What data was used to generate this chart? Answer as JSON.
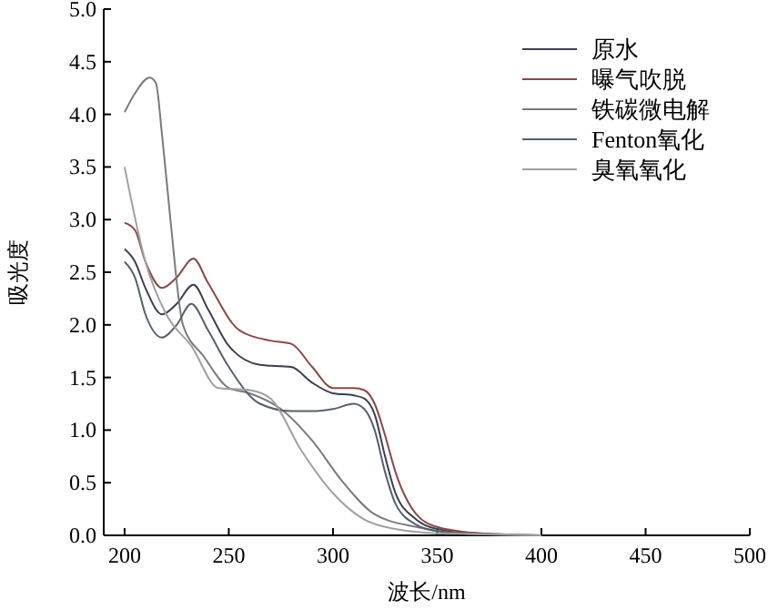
{
  "chart_data": {
    "type": "line",
    "xlabel": "波长/nm",
    "ylabel": "吸光度",
    "xlim": [
      190,
      500
    ],
    "ylim": [
      0,
      5
    ],
    "xticks": [
      200,
      250,
      300,
      350,
      400,
      450,
      500
    ],
    "yticks": [
      {
        "value": 0,
        "label": "0.0"
      },
      {
        "value": 0.5,
        "label": "0.5"
      },
      {
        "value": 1,
        "label": "1.0"
      },
      {
        "value": 1.5,
        "label": "1.5"
      },
      {
        "value": 2,
        "label": "2.0"
      },
      {
        "value": 2.5,
        "label": "2.5"
      },
      {
        "value": 3,
        "label": "3.0"
      },
      {
        "value": 3.5,
        "label": "3.5"
      },
      {
        "value": 4,
        "label": "4.0"
      },
      {
        "value": 4.5,
        "label": "4.5"
      },
      {
        "value": 5,
        "label": "5.0"
      }
    ],
    "grid": false,
    "legend": "top right",
    "marker": "none",
    "line_style": "solid",
    "series": [
      {
        "name": "原水",
        "color": "#3c3f4e",
        "x": [
          200,
          205,
          210,
          218,
          225,
          233,
          240,
          250,
          265,
          280,
          290,
          300,
          310,
          315,
          320,
          325,
          330,
          340,
          350,
          370,
          400
        ],
        "values": [
          2.72,
          2.6,
          2.35,
          2.1,
          2.2,
          2.38,
          2.15,
          1.8,
          1.62,
          1.6,
          1.45,
          1.35,
          1.33,
          1.3,
          1.15,
          0.75,
          0.4,
          0.15,
          0.06,
          0.02,
          0
        ]
      },
      {
        "name": "曝气吹脱",
        "color": "#8a4848",
        "x": [
          200,
          205,
          210,
          218,
          225,
          233,
          240,
          255,
          270,
          280,
          290,
          300,
          310,
          315,
          320,
          325,
          330,
          340,
          350,
          370,
          400
        ],
        "values": [
          2.97,
          2.9,
          2.6,
          2.35,
          2.45,
          2.63,
          2.4,
          1.95,
          1.85,
          1.82,
          1.6,
          1.4,
          1.4,
          1.38,
          1.25,
          0.95,
          0.6,
          0.2,
          0.08,
          0.02,
          0
        ]
      },
      {
        "name": "铁碳微电解",
        "color": "#7a7a7a",
        "x": [
          200,
          205,
          212,
          215,
          218,
          222,
          228,
          238,
          250,
          260,
          275,
          290,
          305,
          320,
          340,
          360,
          400
        ],
        "values": [
          4.02,
          4.2,
          4.35,
          4.3,
          3.8,
          3.0,
          2.0,
          1.7,
          1.4,
          1.35,
          1.2,
          0.9,
          0.5,
          0.2,
          0.08,
          0.02,
          0
        ]
      },
      {
        "name": "Fenton氧化",
        "color": "#55606e",
        "x": [
          200,
          205,
          210,
          218,
          225,
          232,
          240,
          250,
          265,
          280,
          290,
          300,
          310,
          315,
          320,
          325,
          330,
          340,
          350,
          370,
          400
        ],
        "values": [
          2.6,
          2.45,
          2.1,
          1.88,
          2.0,
          2.2,
          1.95,
          1.6,
          1.25,
          1.18,
          1.18,
          1.2,
          1.25,
          1.2,
          1.0,
          0.6,
          0.3,
          0.1,
          0.04,
          0.01,
          0
        ]
      },
      {
        "name": "臭氧氧化",
        "color": "#a0a0a0",
        "x": [
          200,
          210,
          220,
          232,
          245,
          260,
          270,
          285,
          300,
          315,
          330,
          350,
          380,
          400
        ],
        "values": [
          3.5,
          2.6,
          2.1,
          1.8,
          1.4,
          1.38,
          1.3,
          0.8,
          0.4,
          0.15,
          0.06,
          0.02,
          0.01,
          0
        ]
      }
    ]
  }
}
